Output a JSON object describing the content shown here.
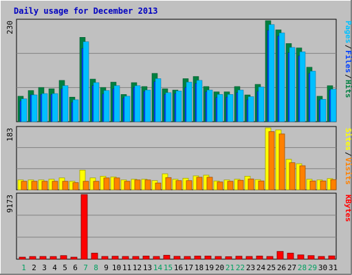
{
  "title": "Daily usage for December 2013",
  "colors": {
    "background": "#c0c0c0",
    "plot_bg": "#c0c0c0",
    "grid": "#808080",
    "title": "#0000c0",
    "hits": "#008040",
    "files": "#0040ff",
    "pages": "#00c0ff",
    "visits": "#ff8000",
    "sites": "#ffff00",
    "kbytes": "#ff0000",
    "weekend_label": "#00a060",
    "weekday_label": "#000000"
  },
  "chart_data": [
    {
      "type": "bar",
      "title": "Daily usage for December 2013",
      "ylabel_max": "230",
      "legend": [
        "Pages",
        "Files",
        "Hits"
      ],
      "categories": [
        "1",
        "2",
        "3",
        "4",
        "5",
        "6",
        "7",
        "8",
        "9",
        "10",
        "11",
        "12",
        "13",
        "14",
        "15",
        "16",
        "17",
        "18",
        "19",
        "20",
        "21",
        "22",
        "23",
        "24",
        "25",
        "26",
        "27",
        "28",
        "29",
        "30",
        "31"
      ],
      "ylim": [
        0,
        230
      ],
      "series": [
        {
          "name": "Hits",
          "values": [
            58,
            71,
            78,
            75,
            94,
            56,
            192,
            97,
            78,
            90,
            62,
            89,
            80,
            110,
            75,
            72,
            98,
            103,
            80,
            68,
            68,
            80,
            61,
            85,
            230,
            209,
            178,
            168,
            124,
            58,
            82
          ]
        },
        {
          "name": "Files",
          "values": [
            47,
            61,
            62,
            62,
            75,
            44,
            167,
            82,
            63,
            75,
            54,
            78,
            69,
            91,
            62,
            64,
            78,
            87,
            68,
            55,
            56,
            66,
            50,
            69,
            208,
            195,
            157,
            150,
            110,
            49,
            72
          ]
        },
        {
          "name": "Pages",
          "values": [
            52,
            61,
            64,
            64,
            82,
            50,
            182,
            89,
            71,
            82,
            58,
            82,
            72,
            98,
            66,
            70,
            90,
            94,
            72,
            62,
            62,
            72,
            57,
            79,
            221,
            202,
            169,
            159,
            115,
            51,
            74
          ]
        }
      ]
    },
    {
      "type": "bar",
      "ylabel_max": "183",
      "legend": [
        "Sites",
        "Visits"
      ],
      "categories": [
        "1",
        "2",
        "3",
        "4",
        "5",
        "6",
        "7",
        "8",
        "9",
        "10",
        "11",
        "12",
        "13",
        "14",
        "15",
        "16",
        "17",
        "18",
        "19",
        "20",
        "21",
        "22",
        "23",
        "24",
        "25",
        "26",
        "27",
        "28",
        "29",
        "30",
        "31"
      ],
      "ylim": [
        0,
        183
      ],
      "series": [
        {
          "name": "Sites",
          "values": [
            29,
            29,
            29,
            31,
            35,
            25,
            58,
            35,
            40,
            38,
            29,
            31,
            31,
            27,
            47,
            31,
            34,
            41,
            43,
            26,
            29,
            31,
            40,
            30,
            183,
            177,
            90,
            77,
            31,
            29,
            33
          ]
        },
        {
          "name": "Visits",
          "values": [
            25,
            25,
            25,
            25,
            25,
            21,
            25,
            25,
            35,
            35,
            25,
            29,
            29,
            20,
            36,
            27,
            27,
            37,
            37,
            23,
            25,
            28,
            32,
            26,
            172,
            165,
            80,
            71,
            26,
            26,
            30
          ]
        }
      ]
    },
    {
      "type": "bar",
      "ylabel_max": "9173",
      "legend": [
        "KBytes"
      ],
      "categories": [
        "1",
        "2",
        "3",
        "4",
        "5",
        "6",
        "7",
        "8",
        "9",
        "10",
        "11",
        "12",
        "13",
        "14",
        "15",
        "16",
        "17",
        "18",
        "19",
        "20",
        "21",
        "22",
        "23",
        "24",
        "25",
        "26",
        "27",
        "28",
        "29",
        "30",
        "31"
      ],
      "ylim": [
        0,
        9173
      ],
      "series": [
        {
          "name": "KBytes",
          "values": [
            290,
            380,
            390,
            380,
            510,
            290,
            9173,
            860,
            390,
            420,
            390,
            390,
            450,
            390,
            560,
            410,
            390,
            450,
            450,
            390,
            360,
            420,
            390,
            450,
            390,
            1100,
            860,
            610,
            510,
            390,
            470
          ]
        }
      ]
    }
  ],
  "day_labels": [
    "1",
    "2",
    "3",
    "4",
    "5",
    "6",
    "7",
    "8",
    "9",
    "10",
    "11",
    "12",
    "13",
    "14",
    "15",
    "16",
    "17",
    "18",
    "19",
    "20",
    "21",
    "22",
    "23",
    "24",
    "25",
    "26",
    "27",
    "28",
    "29",
    "30",
    "31"
  ],
  "weekend_days": [
    "1",
    "7",
    "8",
    "14",
    "15",
    "21",
    "22",
    "28",
    "29"
  ]
}
